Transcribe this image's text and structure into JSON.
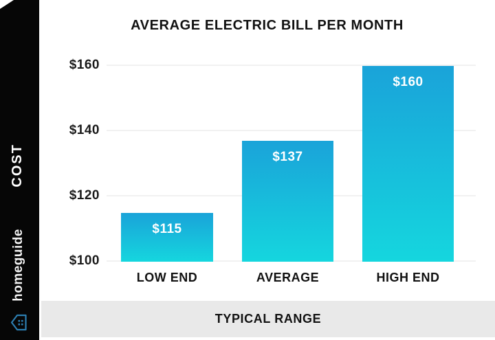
{
  "sidebar": {
    "cost_label": "COST",
    "brand": "homeguide"
  },
  "chart_data": {
    "type": "bar",
    "title": "AVERAGE ELECTRIC BILL PER MONTH",
    "categories": [
      "LOW END",
      "AVERAGE",
      "HIGH END"
    ],
    "values": [
      115,
      137,
      160
    ],
    "value_labels": [
      "$115",
      "$137",
      "$160"
    ],
    "yticks": [
      160,
      140,
      120,
      100
    ],
    "ytick_labels": [
      "$160",
      "$140",
      "$120",
      "$100"
    ],
    "ylim": [
      100,
      160
    ],
    "xlabel": "TYPICAL RANGE",
    "ylabel": "COST",
    "grid": "horizontal",
    "legend": "none"
  },
  "footer": {
    "label": "TYPICAL RANGE"
  },
  "colors": {
    "bar_gradient_top": "#1aa3d9",
    "bar_gradient_bottom": "#15d6de",
    "sidebar_bg": "#060606",
    "footer_bg": "#e9e9e9",
    "gridline": "#f1f1f1",
    "logo_blue": "#2d7fb2",
    "text_dark": "#111111",
    "text_light": "#ffffff"
  }
}
